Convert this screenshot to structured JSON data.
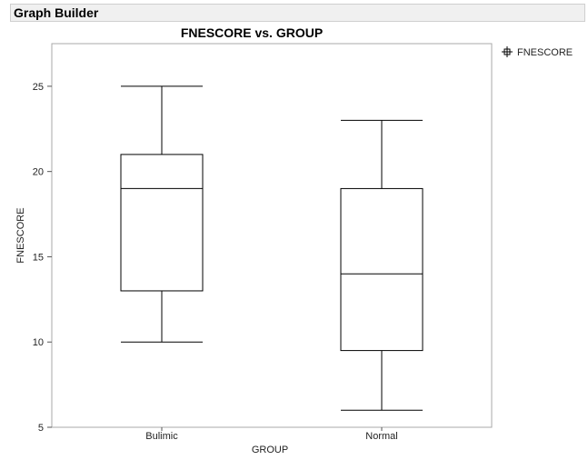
{
  "window": {
    "title": "Graph Builder"
  },
  "chart_data": {
    "type": "box",
    "title": "FNESCORE vs. GROUP",
    "xlabel": "GROUP",
    "ylabel": "FNESCORE",
    "ylim": [
      5,
      27.5
    ],
    "yticks": [
      5,
      10,
      15,
      20,
      25
    ],
    "categories": [
      "Bulimic",
      "Normal"
    ],
    "series": [
      {
        "name": "FNESCORE",
        "boxes": [
          {
            "category": "Bulimic",
            "min": 10,
            "q1": 13,
            "median": 19,
            "q3": 21,
            "max": 25
          },
          {
            "category": "Normal",
            "min": 6,
            "q1": 9.5,
            "median": 14,
            "q3": 19,
            "max": 23
          }
        ]
      }
    ],
    "legend": {
      "position": "right",
      "entries": [
        "FNESCORE"
      ]
    },
    "grid": false
  }
}
